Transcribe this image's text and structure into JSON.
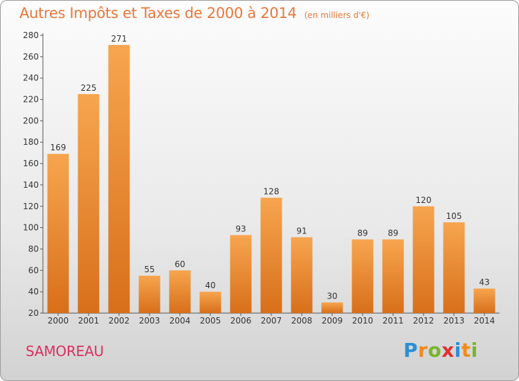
{
  "title": "Autres Impôts et Taxes de 2000 à 2014",
  "title_unit": "(en milliers d'€)",
  "commune": "SAMOREAU",
  "logo": {
    "letters": [
      "P",
      "r",
      "o",
      "x",
      "i",
      "t",
      "i"
    ],
    "colors": [
      "#2a8fd6",
      "#f08a1c",
      "#7ab529",
      "#e0312f",
      "#2a8fd6",
      "#f08a1c",
      "#7ab529"
    ]
  },
  "colors": {
    "bar_top": "#f7a54f",
    "bar_bottom": "#d86f1a",
    "title": "#e8773a",
    "commune": "#d9305f"
  },
  "chart_data": {
    "type": "bar",
    "categories": [
      "2000",
      "2001",
      "2002",
      "2003",
      "2004",
      "2005",
      "2006",
      "2007",
      "2008",
      "2009",
      "2010",
      "2011",
      "2012",
      "2013",
      "2014"
    ],
    "values": [
      169,
      225,
      271,
      55,
      60,
      40,
      93,
      128,
      91,
      30,
      89,
      89,
      120,
      105,
      43
    ],
    "y_ticks": [
      20,
      40,
      60,
      80,
      100,
      120,
      140,
      160,
      180,
      200,
      220,
      240,
      260,
      280
    ],
    "ylim": [
      20,
      280
    ],
    "grid": false
  }
}
